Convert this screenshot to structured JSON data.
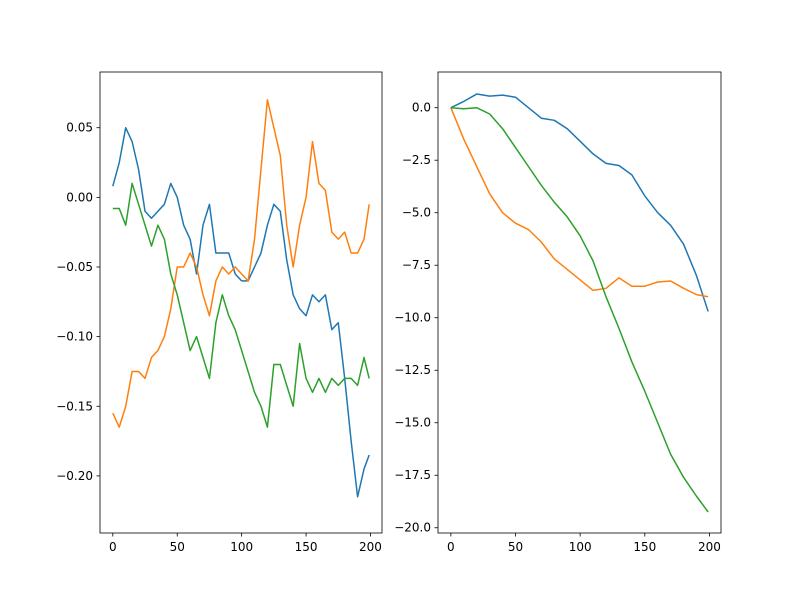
{
  "chart_data": [
    {
      "type": "line",
      "x": [
        0,
        5,
        10,
        15,
        20,
        25,
        30,
        35,
        40,
        45,
        50,
        55,
        60,
        65,
        70,
        75,
        80,
        85,
        90,
        95,
        100,
        105,
        110,
        115,
        120,
        125,
        130,
        135,
        140,
        145,
        150,
        155,
        160,
        165,
        170,
        175,
        180,
        185,
        190,
        195,
        199
      ],
      "series": [
        {
          "color": "#1f77b4",
          "values": [
            0.008,
            0.025,
            0.05,
            0.04,
            0.02,
            -0.01,
            -0.015,
            -0.01,
            -0.005,
            0.01,
            0,
            -0.02,
            -0.03,
            -0.055,
            -0.02,
            -0.005,
            -0.04,
            -0.04,
            -0.04,
            -0.055,
            -0.06,
            -0.06,
            -0.05,
            -0.04,
            -0.02,
            -0.005,
            -0.01,
            -0.045,
            -0.07,
            -0.08,
            -0.085,
            -0.07,
            -0.075,
            -0.07,
            -0.095,
            -0.09,
            -0.13,
            -0.175,
            -0.215,
            -0.195,
            -0.185
          ]
        },
        {
          "color": "#ff7f0e",
          "values": [
            -0.155,
            -0.165,
            -0.15,
            -0.125,
            -0.125,
            -0.13,
            -0.115,
            -0.11,
            -0.1,
            -0.08,
            -0.05,
            -0.05,
            -0.04,
            -0.05,
            -0.07,
            -0.085,
            -0.06,
            -0.05,
            -0.055,
            -0.05,
            -0.055,
            -0.06,
            -0.03,
            0.02,
            0.07,
            0.05,
            0.03,
            -0.02,
            -0.05,
            -0.02,
            0,
            0.04,
            0.01,
            0.005,
            -0.025,
            -0.03,
            -0.025,
            -0.04,
            -0.04,
            -0.03,
            -0.005
          ]
        },
        {
          "color": "#2ca02c",
          "values": [
            -0.008,
            -0.008,
            -0.02,
            0.01,
            -0.005,
            -0.02,
            -0.035,
            -0.02,
            -0.03,
            -0.055,
            -0.07,
            -0.09,
            -0.11,
            -0.1,
            -0.115,
            -0.13,
            -0.09,
            -0.07,
            -0.085,
            -0.095,
            -0.11,
            -0.125,
            -0.14,
            -0.15,
            -0.165,
            -0.12,
            -0.12,
            -0.135,
            -0.15,
            -0.105,
            -0.13,
            -0.14,
            -0.13,
            -0.14,
            -0.13,
            -0.135,
            -0.13,
            -0.13,
            -0.135,
            -0.115,
            -0.13
          ]
        }
      ],
      "xlim": [
        -9.95,
        208.95
      ],
      "xticks": [
        0,
        50,
        100,
        150,
        200
      ],
      "ylim": [
        -0.241,
        0.09
      ],
      "yticks": [
        {
          "value": -0.2,
          "label": "−0.20"
        },
        {
          "value": -0.15,
          "label": "−0.15"
        },
        {
          "value": -0.1,
          "label": "−0.10"
        },
        {
          "value": -0.05,
          "label": "−0.05"
        },
        {
          "value": 0,
          "label": "0.00"
        },
        {
          "value": 0.05,
          "label": "0.05"
        }
      ]
    },
    {
      "type": "line",
      "x": [
        0,
        10,
        20,
        30,
        40,
        50,
        60,
        70,
        80,
        90,
        100,
        110,
        120,
        130,
        140,
        150,
        160,
        170,
        180,
        190,
        199
      ],
      "series": [
        {
          "color": "#1f77b4",
          "values": [
            0,
            0.3,
            0.65,
            0.55,
            0.6,
            0.5,
            0,
            -0.5,
            -0.6,
            -1.0,
            -1.6,
            -2.2,
            -2.65,
            -2.75,
            -3.2,
            -4.2,
            -5.0,
            -5.6,
            -6.5,
            -8.0,
            -9.7
          ]
        },
        {
          "color": "#ff7f0e",
          "values": [
            0,
            -1.5,
            -2.8,
            -4.1,
            -5.0,
            -5.5,
            -5.8,
            -6.4,
            -7.2,
            -7.7,
            -8.2,
            -8.7,
            -8.6,
            -8.1,
            -8.5,
            -8.5,
            -8.3,
            -8.25,
            -8.6,
            -8.9,
            -9.0
          ]
        },
        {
          "color": "#2ca02c",
          "values": [
            0,
            -0.05,
            0,
            -0.3,
            -1.0,
            -1.9,
            -2.8,
            -3.7,
            -4.5,
            -5.2,
            -6.1,
            -7.3,
            -9.0,
            -10.5,
            -12.1,
            -13.5,
            -15.0,
            -16.5,
            -17.6,
            -18.5,
            -19.25
          ]
        }
      ],
      "xlim": [
        -9.95,
        208.95
      ],
      "xticks": [
        0,
        50,
        100,
        150,
        200
      ],
      "ylim": [
        -20.25,
        1.7
      ],
      "yticks": [
        {
          "value": -20,
          "label": "−20.0"
        },
        {
          "value": -17.5,
          "label": "−17.5"
        },
        {
          "value": -15,
          "label": "−15.0"
        },
        {
          "value": -12.5,
          "label": "−12.5"
        },
        {
          "value": -10,
          "label": "−10.0"
        },
        {
          "value": -7.5,
          "label": "−7.5"
        },
        {
          "value": -5,
          "label": "−5.0"
        },
        {
          "value": -2.5,
          "label": "−2.5"
        },
        {
          "value": 0,
          "label": "0.0"
        }
      ]
    }
  ]
}
